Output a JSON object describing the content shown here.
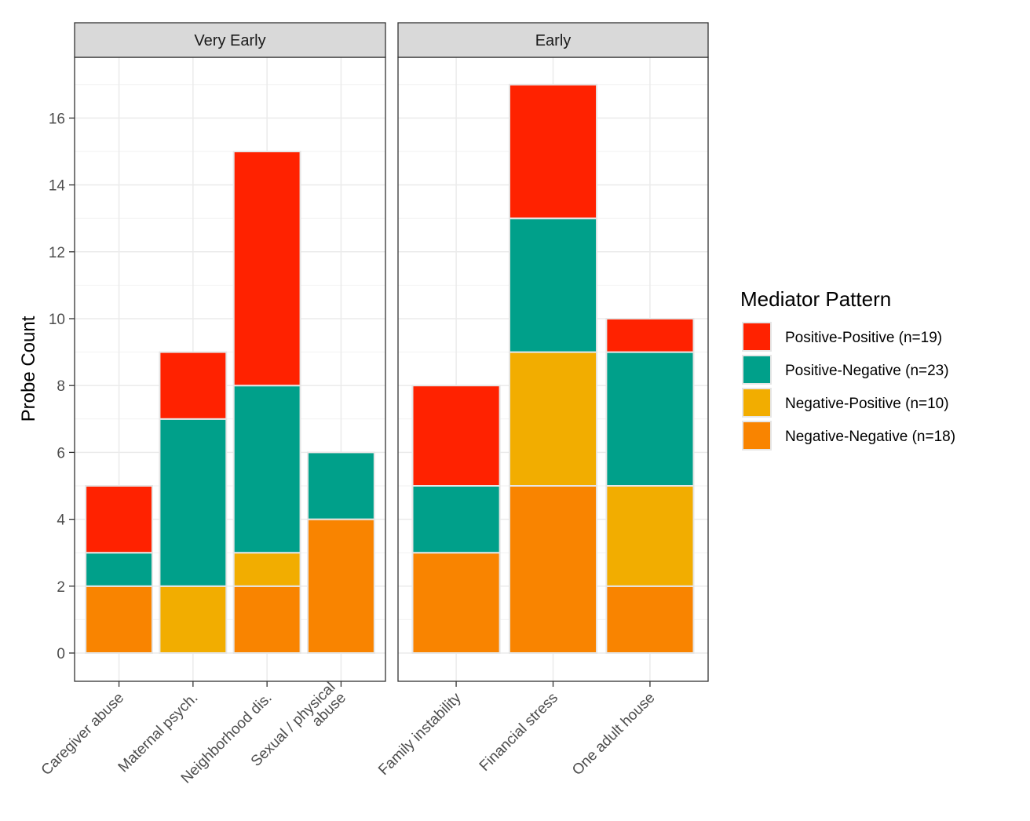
{
  "chart_data": {
    "type": "bar",
    "stacked": true,
    "ylabel": "Probe Count",
    "ylim": [
      0,
      17.6
    ],
    "yticks": [
      0,
      2,
      4,
      6,
      8,
      10,
      12,
      14,
      16
    ],
    "grid": true,
    "legend": {
      "title": "Mediator Pattern",
      "position": "right",
      "entries": [
        {
          "key": "pp",
          "label": "Positive-Positive (n=19)",
          "color": "#FF2200"
        },
        {
          "key": "pn",
          "label": "Positive-Negative (n=23)",
          "color": "#00A08A"
        },
        {
          "key": "np",
          "label": "Negative-Positive (n=10)",
          "color": "#F2AD00"
        },
        {
          "key": "nn",
          "label": "Negative-Negative (n=18)",
          "color": "#F98400"
        }
      ]
    },
    "stack_order_bottom_to_top": [
      "nn",
      "np",
      "pn",
      "pp"
    ],
    "facets": [
      {
        "title": "Very Early",
        "categories": [
          "Caregiver abuse",
          "Maternal psych.",
          "Neighborhood dis.",
          "Sexual / physical\nabuse"
        ],
        "series": [
          {
            "key": "nn",
            "values": [
              2,
              0,
              2,
              4
            ]
          },
          {
            "key": "np",
            "values": [
              0,
              2,
              1,
              0
            ]
          },
          {
            "key": "pn",
            "values": [
              1,
              5,
              5,
              2
            ]
          },
          {
            "key": "pp",
            "values": [
              2,
              2,
              7,
              0
            ]
          }
        ]
      },
      {
        "title": "Early",
        "categories": [
          "Family instability",
          "Financial stress",
          "One adult house"
        ],
        "series": [
          {
            "key": "nn",
            "values": [
              3,
              5,
              2
            ]
          },
          {
            "key": "np",
            "values": [
              0,
              4,
              3
            ]
          },
          {
            "key": "pn",
            "values": [
              2,
              4,
              4
            ]
          },
          {
            "key": "pp",
            "values": [
              3,
              4,
              1
            ]
          }
        ]
      }
    ]
  }
}
